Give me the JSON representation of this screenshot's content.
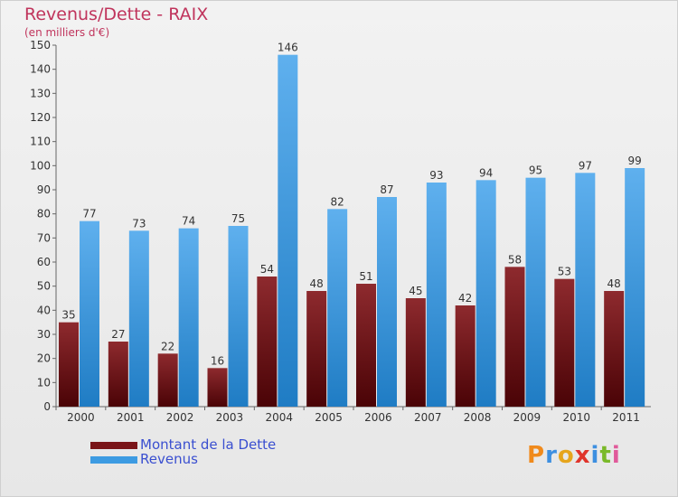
{
  "colors": {
    "dette": "#7a1418",
    "revenus": "#3d9be2",
    "title": "#c0345c",
    "legend_text": "#3a4fd0"
  },
  "chart_data": {
    "type": "bar",
    "title": "Revenus/Dette - RAIX",
    "subtitle": "(en milliers d'€)",
    "categories": [
      "2000",
      "2001",
      "2002",
      "2003",
      "2004",
      "2005",
      "2006",
      "2007",
      "2008",
      "2009",
      "2010",
      "2011"
    ],
    "series": [
      {
        "name": "Montant de la Dette",
        "values": [
          35,
          27,
          22,
          16,
          54,
          48,
          51,
          45,
          42,
          58,
          53,
          48
        ]
      },
      {
        "name": "Revenus",
        "values": [
          77,
          73,
          74,
          75,
          146,
          82,
          87,
          93,
          94,
          95,
          97,
          99
        ]
      }
    ],
    "ylim": [
      0,
      150
    ],
    "yticks": [
      0,
      10,
      20,
      30,
      40,
      50,
      60,
      70,
      80,
      90,
      100,
      110,
      120,
      130,
      140,
      150
    ],
    "grid": false,
    "legend_position": "bottom-left"
  },
  "logo_text": "Proxiti"
}
